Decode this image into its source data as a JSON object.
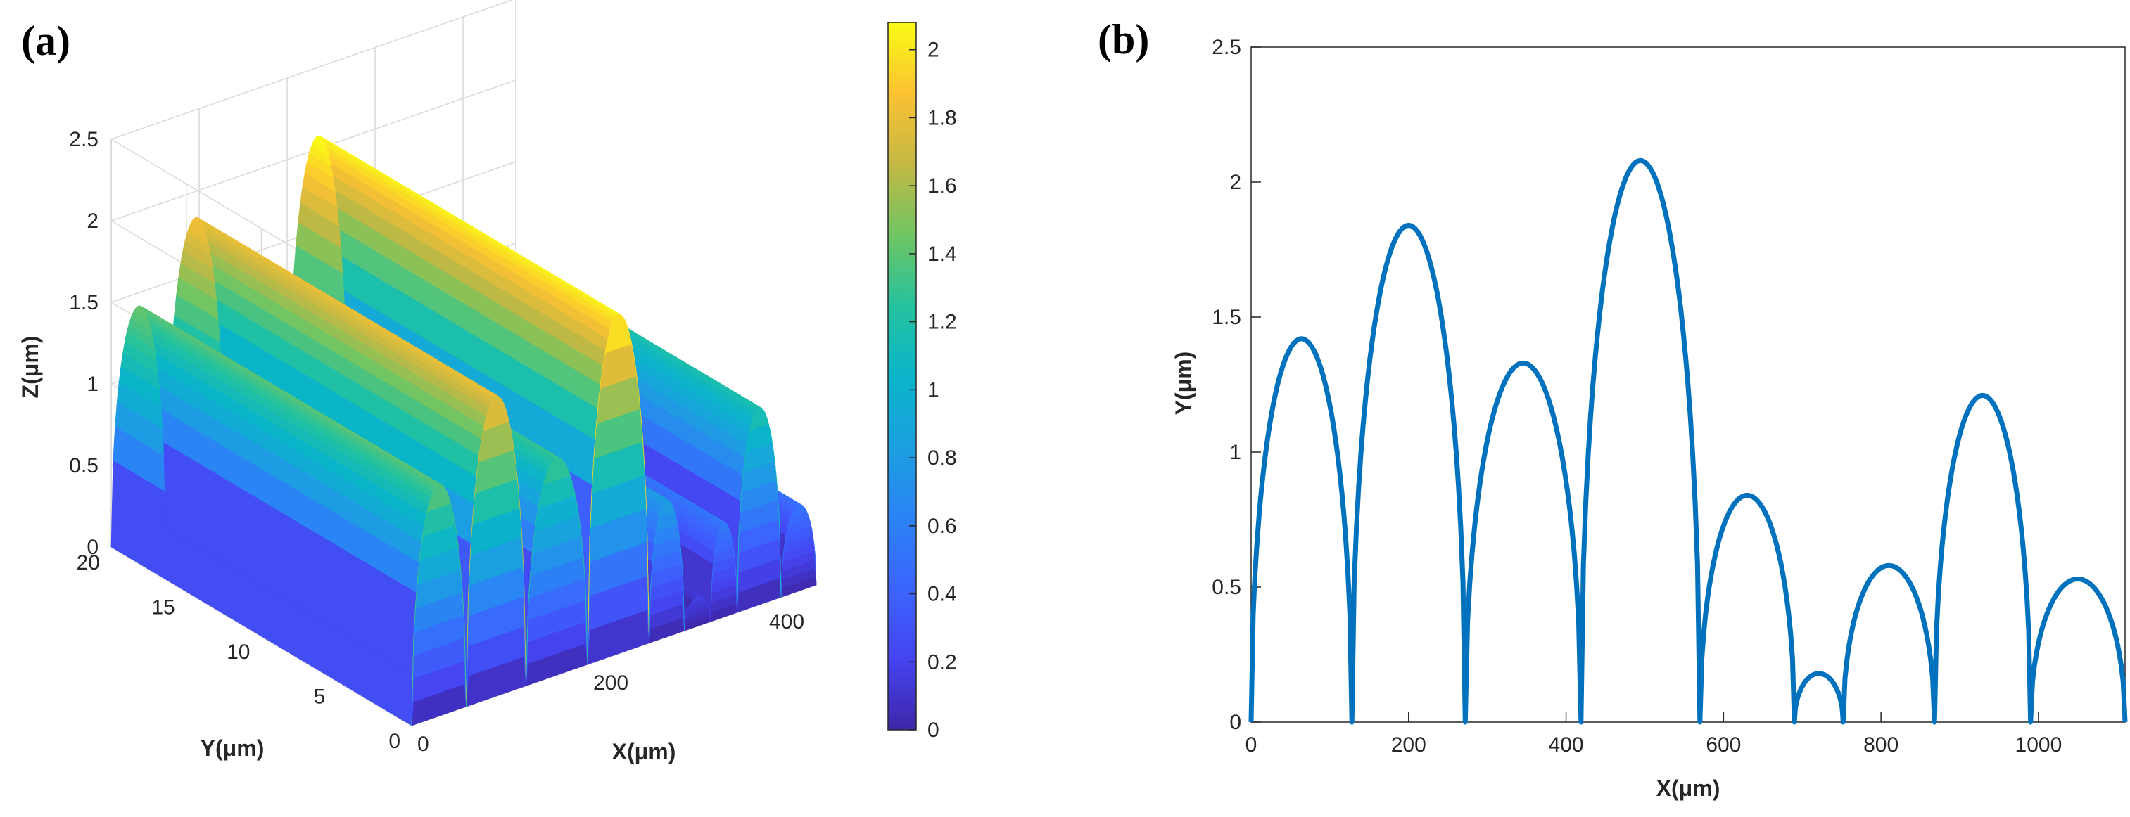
{
  "panels": {
    "a_label": "(a)",
    "b_label": "(b)"
  },
  "chart_data": [
    {
      "type": "surface3d",
      "panel": "(a)",
      "xlabel": "X(μm)",
      "ylabel": "Y(μm)",
      "zlabel": "Z(μm)",
      "x_ticks": [
        "0",
        "200",
        "400"
      ],
      "y_ticks": [
        "0",
        "5",
        "10",
        "15",
        "20"
      ],
      "z_ticks": [
        "0",
        "0.5",
        "1",
        "1.5",
        "2",
        "2.5"
      ],
      "xlim": [
        0,
        460
      ],
      "ylim": [
        0,
        20
      ],
      "zlim": [
        0,
        2.5
      ],
      "grid": true,
      "colormap": "parula",
      "ridges": [
        {
          "x_start": 0,
          "x_end": 62,
          "peak": 1.42
        },
        {
          "x_start": 62,
          "x_end": 130,
          "peak": 1.84
        },
        {
          "x_start": 130,
          "x_end": 200,
          "peak": 1.33
        },
        {
          "x_start": 200,
          "x_end": 270,
          "peak": 2.08
        },
        {
          "x_start": 270,
          "x_end": 310,
          "peak": 0.84
        },
        {
          "x_start": 310,
          "x_end": 340,
          "peak": 0.18
        },
        {
          "x_start": 340,
          "x_end": 370,
          "peak": 0.58
        },
        {
          "x_start": 370,
          "x_end": 420,
          "peak": 1.21
        },
        {
          "x_start": 420,
          "x_end": 460,
          "peak": 0.53
        }
      ],
      "colorbar": {
        "ticks": [
          "0",
          "0.2",
          "0.4",
          "0.6",
          "0.8",
          "1",
          "1.2",
          "1.4",
          "1.6",
          "1.8",
          "2"
        ],
        "range": [
          0,
          2.08
        ]
      }
    },
    {
      "type": "line",
      "panel": "(b)",
      "xlabel": "X(μm)",
      "ylabel": "Y(μm)",
      "xlim": [
        0,
        1110
      ],
      "ylim": [
        0,
        2.5
      ],
      "x_ticks": [
        "0",
        "200",
        "400",
        "600",
        "800",
        "1000"
      ],
      "y_ticks": [
        "0",
        "0.5",
        "1",
        "1.5",
        "2",
        "2.5"
      ],
      "color": "#0072BD",
      "arcs": [
        {
          "x_start": 0,
          "x_end": 128,
          "peak": 1.42
        },
        {
          "x_start": 128,
          "x_end": 272,
          "peak": 1.84
        },
        {
          "x_start": 272,
          "x_end": 419,
          "peak": 1.33
        },
        {
          "x_start": 419,
          "x_end": 570,
          "peak": 2.08
        },
        {
          "x_start": 570,
          "x_end": 690,
          "peak": 0.84
        },
        {
          "x_start": 690,
          "x_end": 752,
          "peak": 0.18
        },
        {
          "x_start": 752,
          "x_end": 868,
          "peak": 0.58
        },
        {
          "x_start": 868,
          "x_end": 990,
          "peak": 1.21
        },
        {
          "x_start": 990,
          "x_end": 1110,
          "peak": 0.53
        }
      ]
    }
  ]
}
